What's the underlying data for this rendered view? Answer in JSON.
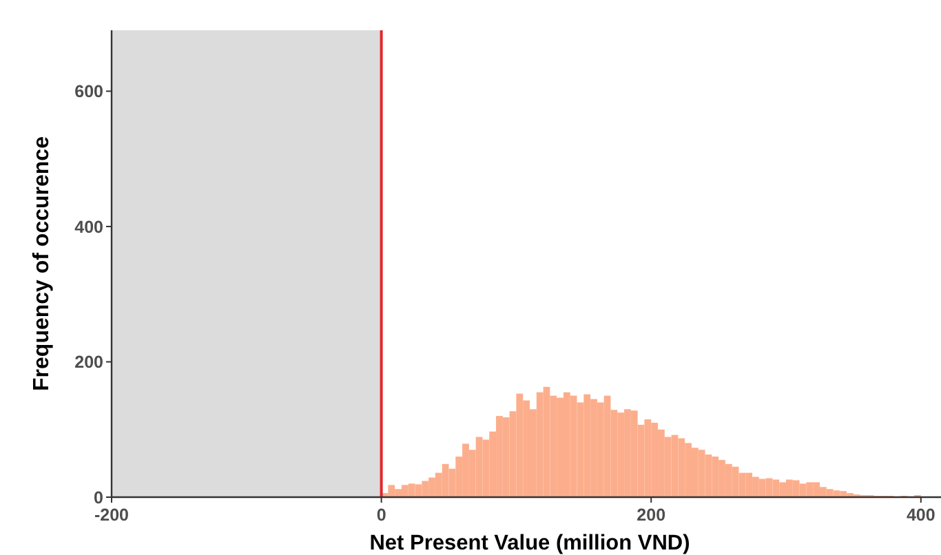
{
  "chart_data": {
    "type": "histogram",
    "xlabel": "Net Present Value (million VND)",
    "ylabel": "Frequency of occurence",
    "bins": [
      0,
      5,
      10,
      15,
      20,
      25,
      30,
      35,
      40,
      45,
      50,
      55,
      60,
      65,
      70,
      75,
      80,
      85,
      90,
      95,
      100,
      105,
      110,
      115,
      120,
      125,
      130,
      135,
      140,
      145,
      150,
      155,
      160,
      165,
      170,
      175,
      180,
      185,
      190,
      195,
      200,
      205,
      210,
      215,
      220,
      225,
      230,
      235,
      240,
      245,
      250,
      255,
      260,
      265,
      270,
      275,
      280,
      285,
      290,
      295,
      300,
      305,
      310,
      315,
      320,
      325,
      330,
      335,
      340,
      345,
      350,
      355,
      360,
      365,
      370,
      375,
      380,
      385,
      390,
      395,
      400,
      405
    ],
    "values": [
      6,
      18,
      12,
      18,
      20,
      19,
      24,
      29,
      36,
      49,
      42,
      60,
      79,
      70,
      89,
      85,
      97,
      120,
      118,
      127,
      153,
      143,
      130,
      155,
      163,
      150,
      147,
      155,
      150,
      140,
      152,
      145,
      140,
      150,
      129,
      125,
      130,
      128,
      107,
      115,
      110,
      100,
      89,
      92,
      87,
      80,
      73,
      70,
      63,
      60,
      55,
      49,
      45,
      36,
      36,
      30,
      27,
      28,
      26,
      22,
      26,
      25,
      20,
      22,
      22,
      15,
      12,
      10,
      9,
      6,
      4,
      3,
      3,
      2,
      2,
      2,
      1,
      2,
      1,
      3,
      1
    ],
    "color": "#fcae8c",
    "xlim": [
      -200,
      420
    ],
    "ylim": [
      0,
      690
    ],
    "xticks": [
      -200,
      0,
      200,
      400
    ],
    "yticks": [
      0,
      200,
      400,
      600
    ],
    "bands": [
      {
        "axis": "x",
        "from": -200,
        "to": 0,
        "color": "#dcdcdc"
      }
    ],
    "ref_lines": [
      {
        "axis": "x",
        "value": 0,
        "color": "#e3262b"
      }
    ],
    "grid": false
  }
}
